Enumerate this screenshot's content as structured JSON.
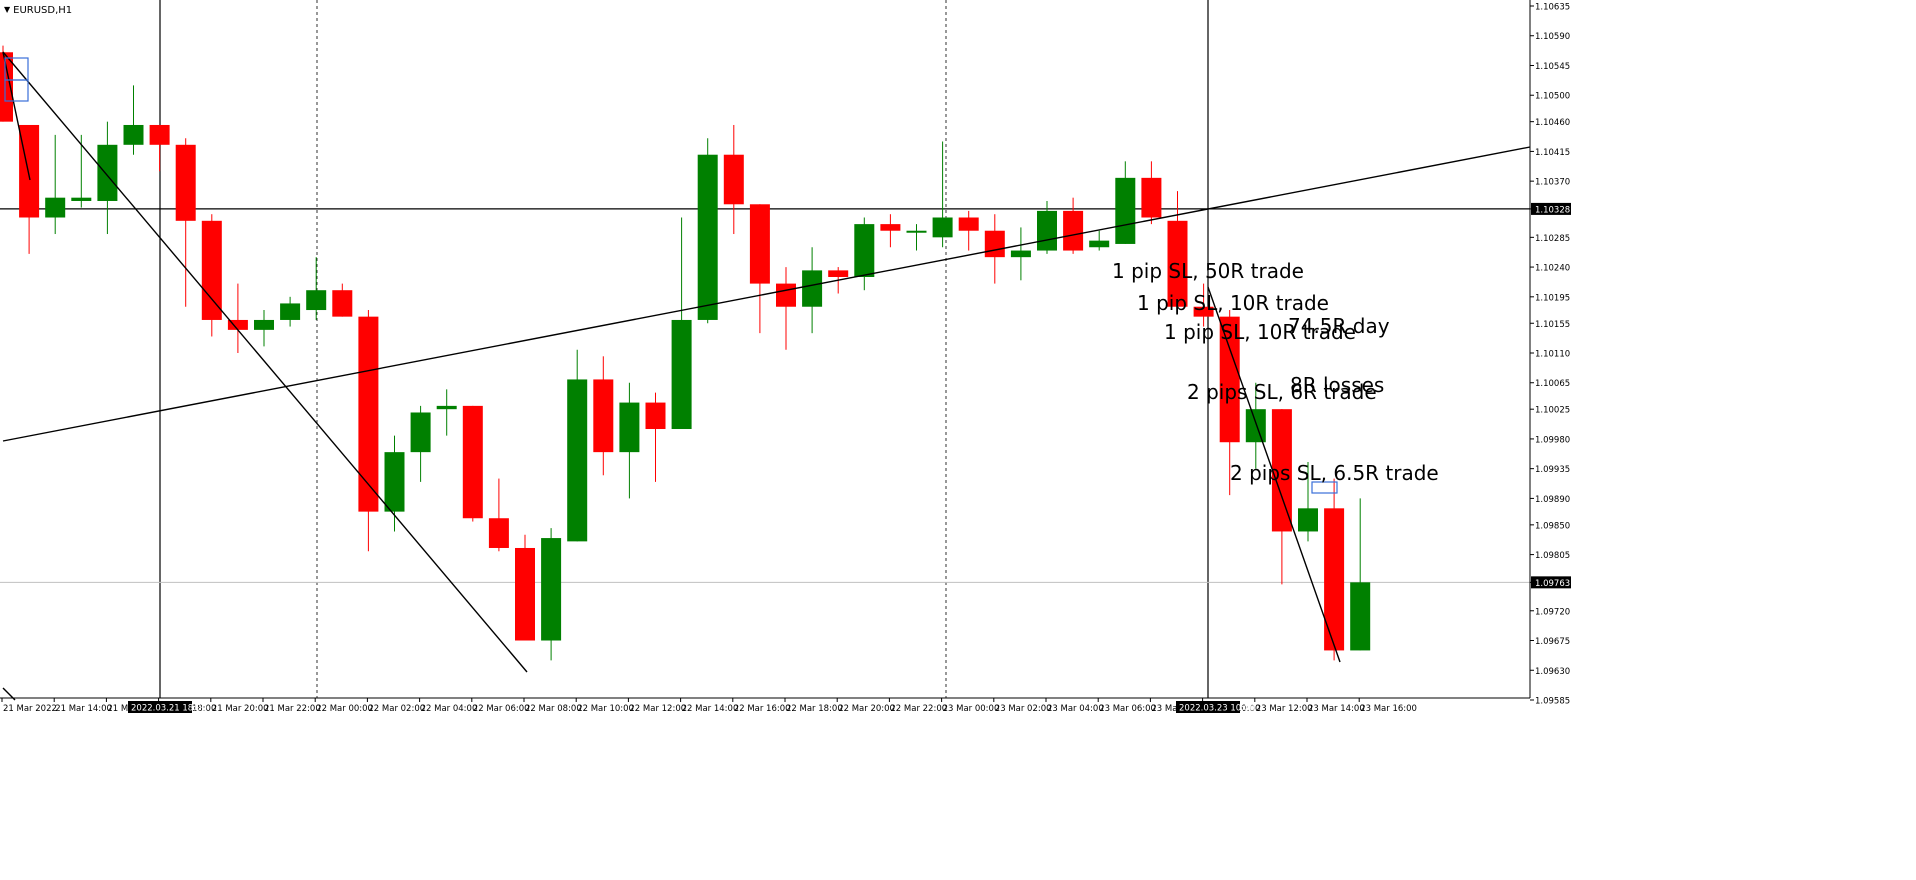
{
  "symbol_label": "EURUSD,H1",
  "chart_data": {
    "type": "candlestick",
    "title": "",
    "symbol": "EURUSD",
    "timeframe": "H1",
    "ylim": [
      1.09585,
      1.10635
    ],
    "y_ticks": [
      "1.10635",
      "1.10590",
      "1.10545",
      "1.10500",
      "1.10460",
      "1.10415",
      "1.10370",
      "1.10328",
      "1.10285",
      "1.10240",
      "1.10195",
      "1.10155",
      "1.10110",
      "1.10065",
      "1.10025",
      "1.09980",
      "1.09935",
      "1.09890",
      "1.09850",
      "1.09805",
      "1.09763",
      "1.09720",
      "1.09675",
      "1.09630",
      "1.09585"
    ],
    "x_ticks": [
      "21 Mar 2022",
      "21 Mar 14:00",
      "21 Mar 16:00",
      "21 Mar 18:00",
      "21 Mar 20:00",
      "21 Mar 22:00",
      "22 Mar 00:00",
      "22 Mar 02:00",
      "22 Mar 04:00",
      "22 Mar 06:00",
      "22 Mar 08:00",
      "22 Mar 10:00",
      "22 Mar 12:00",
      "22 Mar 14:00",
      "22 Mar 16:00",
      "22 Mar 18:00",
      "22 Mar 20:00",
      "22 Mar 22:00",
      "23 Mar 00:00",
      "23 Mar 02:00",
      "23 Mar 04:00",
      "23 Mar 06:00",
      "23 Mar 08:00",
      "23 Mar 10:00",
      "23 Mar 12:00",
      "23 Mar 14:00",
      "23 Mar 16:00"
    ],
    "candles": [
      {
        "open": 1.10565,
        "high": 1.10575,
        "low": 1.1046,
        "close": 1.1046
      },
      {
        "open": 1.10455,
        "high": 1.10455,
        "low": 1.1026,
        "close": 1.10315
      },
      {
        "open": 1.10315,
        "high": 1.1044,
        "low": 1.1029,
        "close": 1.10345
      },
      {
        "open": 1.1034,
        "high": 1.1044,
        "low": 1.1033,
        "close": 1.10345
      },
      {
        "open": 1.1034,
        "high": 1.1046,
        "low": 1.1029,
        "close": 1.10425
      },
      {
        "open": 1.10425,
        "high": 1.10515,
        "low": 1.1041,
        "close": 1.10455
      },
      {
        "open": 1.10455,
        "high": 1.10455,
        "low": 1.10385,
        "close": 1.10425
      },
      {
        "open": 1.10425,
        "high": 1.10435,
        "low": 1.1018,
        "close": 1.1031
      },
      {
        "open": 1.1031,
        "high": 1.1032,
        "low": 1.10135,
        "close": 1.1016
      },
      {
        "open": 1.1016,
        "high": 1.10215,
        "low": 1.1011,
        "close": 1.10145
      },
      {
        "open": 1.10145,
        "high": 1.10175,
        "low": 1.1012,
        "close": 1.1016
      },
      {
        "open": 1.1016,
        "high": 1.10195,
        "low": 1.1015,
        "close": 1.10185
      },
      {
        "open": 1.10175,
        "high": 1.10255,
        "low": 1.1016,
        "close": 1.10205
      },
      {
        "open": 1.10205,
        "high": 1.10215,
        "low": 1.10165,
        "close": 1.10165
      },
      {
        "open": 1.10165,
        "high": 1.10175,
        "low": 1.0981,
        "close": 1.0987
      },
      {
        "open": 1.0987,
        "high": 1.09985,
        "low": 1.0984,
        "close": 1.0996
      },
      {
        "open": 1.0996,
        "high": 1.1003,
        "low": 1.09915,
        "close": 1.1002
      },
      {
        "open": 1.10025,
        "high": 1.10055,
        "low": 1.09985,
        "close": 1.1003
      },
      {
        "open": 1.1003,
        "high": 1.1003,
        "low": 1.09855,
        "close": 1.0986
      },
      {
        "open": 1.0986,
        "high": 1.0992,
        "low": 1.0981,
        "close": 1.09815
      },
      {
        "open": 1.09815,
        "high": 1.09835,
        "low": 1.09675,
        "close": 1.09675
      },
      {
        "open": 1.09675,
        "high": 1.09845,
        "low": 1.09645,
        "close": 1.0983
      },
      {
        "open": 1.09825,
        "high": 1.10115,
        "low": 1.09825,
        "close": 1.1007
      },
      {
        "open": 1.1007,
        "high": 1.10105,
        "low": 1.09925,
        "close": 1.0996
      },
      {
        "open": 1.0996,
        "high": 1.10065,
        "low": 1.0989,
        "close": 1.10035
      },
      {
        "open": 1.10035,
        "high": 1.1005,
        "low": 1.09915,
        "close": 1.09995
      },
      {
        "open": 1.09995,
        "high": 1.10315,
        "low": 1.09995,
        "close": 1.1016
      },
      {
        "open": 1.1016,
        "high": 1.10435,
        "low": 1.10155,
        "close": 1.1041
      },
      {
        "open": 1.1041,
        "high": 1.10455,
        "low": 1.1029,
        "close": 1.10335
      },
      {
        "open": 1.10335,
        "high": 1.10335,
        "low": 1.1014,
        "close": 1.10215
      },
      {
        "open": 1.10215,
        "high": 1.1024,
        "low": 1.10115,
        "close": 1.1018
      },
      {
        "open": 1.1018,
        "high": 1.1027,
        "low": 1.1014,
        "close": 1.10235
      },
      {
        "open": 1.10235,
        "high": 1.1024,
        "low": 1.102,
        "close": 1.10225
      },
      {
        "open": 1.10225,
        "high": 1.10315,
        "low": 1.10205,
        "close": 1.10305
      },
      {
        "open": 1.10305,
        "high": 1.1032,
        "low": 1.1027,
        "close": 1.10295
      },
      {
        "open": 1.10295,
        "high": 1.10305,
        "low": 1.10265,
        "close": 1.10295
      },
      {
        "open": 1.10285,
        "high": 1.1043,
        "low": 1.1027,
        "close": 1.10315
      },
      {
        "open": 1.10315,
        "high": 1.10325,
        "low": 1.10265,
        "close": 1.10295
      },
      {
        "open": 1.10295,
        "high": 1.1032,
        "low": 1.10215,
        "close": 1.10255
      },
      {
        "open": 1.10255,
        "high": 1.103,
        "low": 1.1022,
        "close": 1.10265
      },
      {
        "open": 1.10265,
        "high": 1.1034,
        "low": 1.1026,
        "close": 1.10325
      },
      {
        "open": 1.10325,
        "high": 1.10345,
        "low": 1.1026,
        "close": 1.10265
      },
      {
        "open": 1.1027,
        "high": 1.10295,
        "low": 1.10265,
        "close": 1.1028
      },
      {
        "open": 1.10275,
        "high": 1.104,
        "low": 1.10275,
        "close": 1.10375
      },
      {
        "open": 1.10375,
        "high": 1.104,
        "low": 1.10305,
        "close": 1.10315
      },
      {
        "open": 1.1031,
        "high": 1.10355,
        "low": 1.10175,
        "close": 1.1018
      },
      {
        "open": 1.1018,
        "high": 1.10215,
        "low": 1.1015,
        "close": 1.10165
      },
      {
        "open": 1.10165,
        "high": 1.10175,
        "low": 1.09895,
        "close": 1.09975
      },
      {
        "open": 1.09975,
        "high": 1.10065,
        "low": 1.09935,
        "close": 1.10025
      },
      {
        "open": 1.10025,
        "high": 1.10025,
        "low": 1.0976,
        "close": 1.0984
      },
      {
        "open": 1.0984,
        "high": 1.09945,
        "low": 1.09825,
        "close": 1.09875
      },
      {
        "open": 1.09875,
        "high": 1.0992,
        "low": 1.09645,
        "close": 1.0966
      },
      {
        "open": 1.0966,
        "high": 1.0989,
        "low": 1.0966,
        "close": 1.09763
      }
    ],
    "horizontal_lines": [
      {
        "price": 1.10328,
        "label": "1.10328",
        "style": "solid",
        "color": "#000000"
      },
      {
        "price": 1.09763,
        "label": "1.09763",
        "style": "solid",
        "color": "#c0c0c0"
      }
    ],
    "time_markers": [
      {
        "label": "2022.03.21 18:00",
        "style": "solid"
      },
      {
        "label": "",
        "style": "dotted"
      },
      {
        "label": "",
        "style": "dotted"
      },
      {
        "label": "2022.03.23 10:00",
        "style": "solid"
      }
    ],
    "annotations": [
      "1 pip SL, 50R trade",
      "1 pip SL, 10R trade",
      "1 pip SL, 10R trade",
      "74.5R day",
      "2  pips SL, 6R trade",
      "8R losses",
      "2  pips SL, 6.5R trade"
    ],
    "colors": {
      "bull": "#008000",
      "bear": "#ff0000",
      "background": "#ffffff",
      "axis": "#000000",
      "rectangle": "#3a6fd8"
    }
  }
}
